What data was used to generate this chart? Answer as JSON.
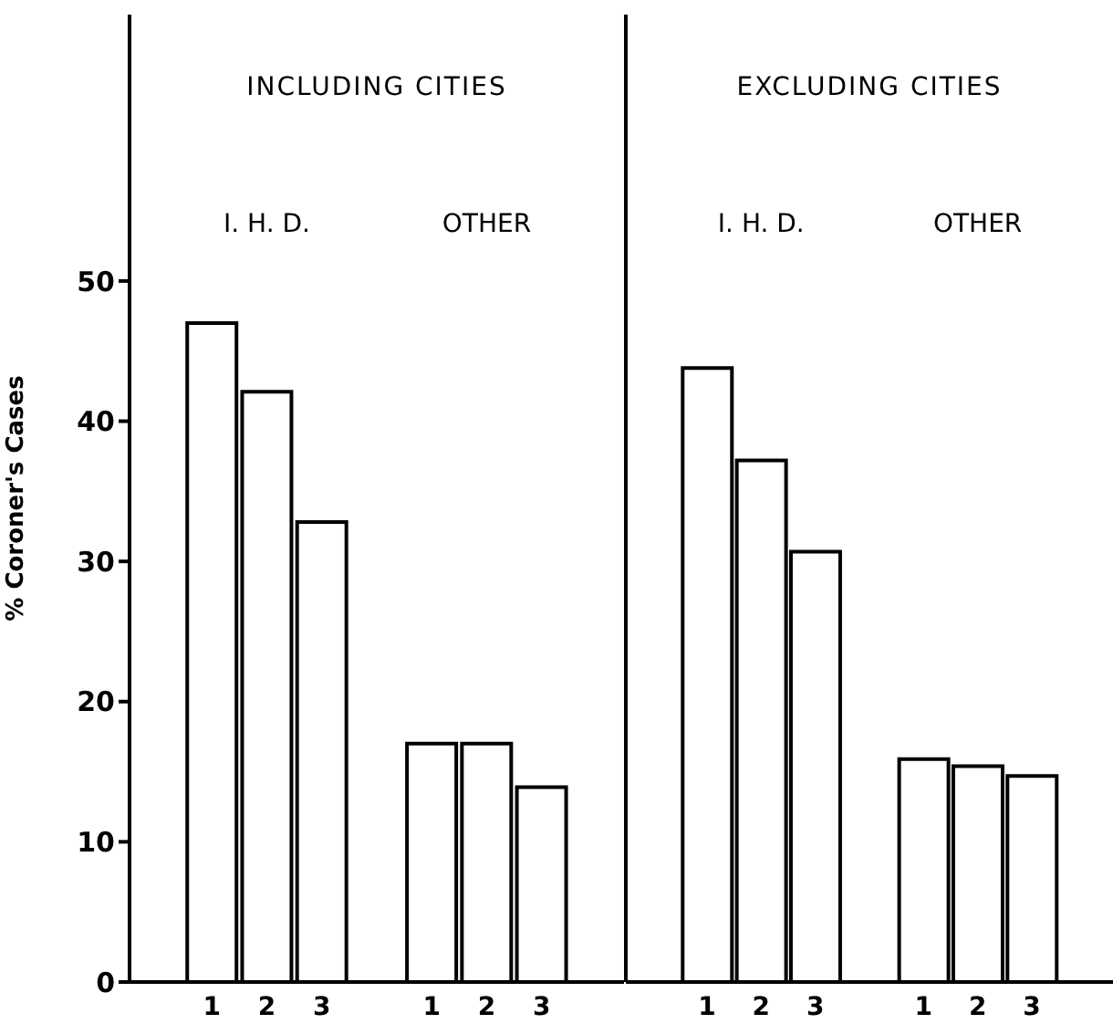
{
  "chart_data": [
    {
      "type": "bar",
      "title": "INCLUDING CITIES",
      "ylabel": "% Coroner's Cases",
      "categories": [
        null,
        "1",
        "2",
        "3",
        null,
        "1",
        "2",
        "3",
        null
      ],
      "values": [
        null,
        47,
        42.1,
        32.8,
        null,
        17,
        17,
        13.9,
        null
      ],
      "color": "#ffffff",
      "ylim": [
        0,
        69
      ],
      "yticks": [
        0,
        10,
        20,
        30,
        40,
        50
      ],
      "annotations": [
        "I. H. D.",
        "OTHER"
      ]
    },
    {
      "type": "bar",
      "title": "EXCLUDING CITIES",
      "categories": [
        null,
        "1",
        "2",
        "3",
        null,
        "1",
        "2",
        "3",
        null
      ],
      "values": [
        null,
        43.8,
        37.2,
        30.7,
        null,
        15.9,
        15.4,
        14.7,
        null
      ],
      "color": "#ffffff",
      "ylim": [
        0,
        69
      ],
      "yticks": [
        0,
        10,
        20,
        30,
        40,
        50
      ],
      "tick_labels": "x",
      "annotations": [
        "I. H. D.",
        "OTHER"
      ]
    }
  ]
}
